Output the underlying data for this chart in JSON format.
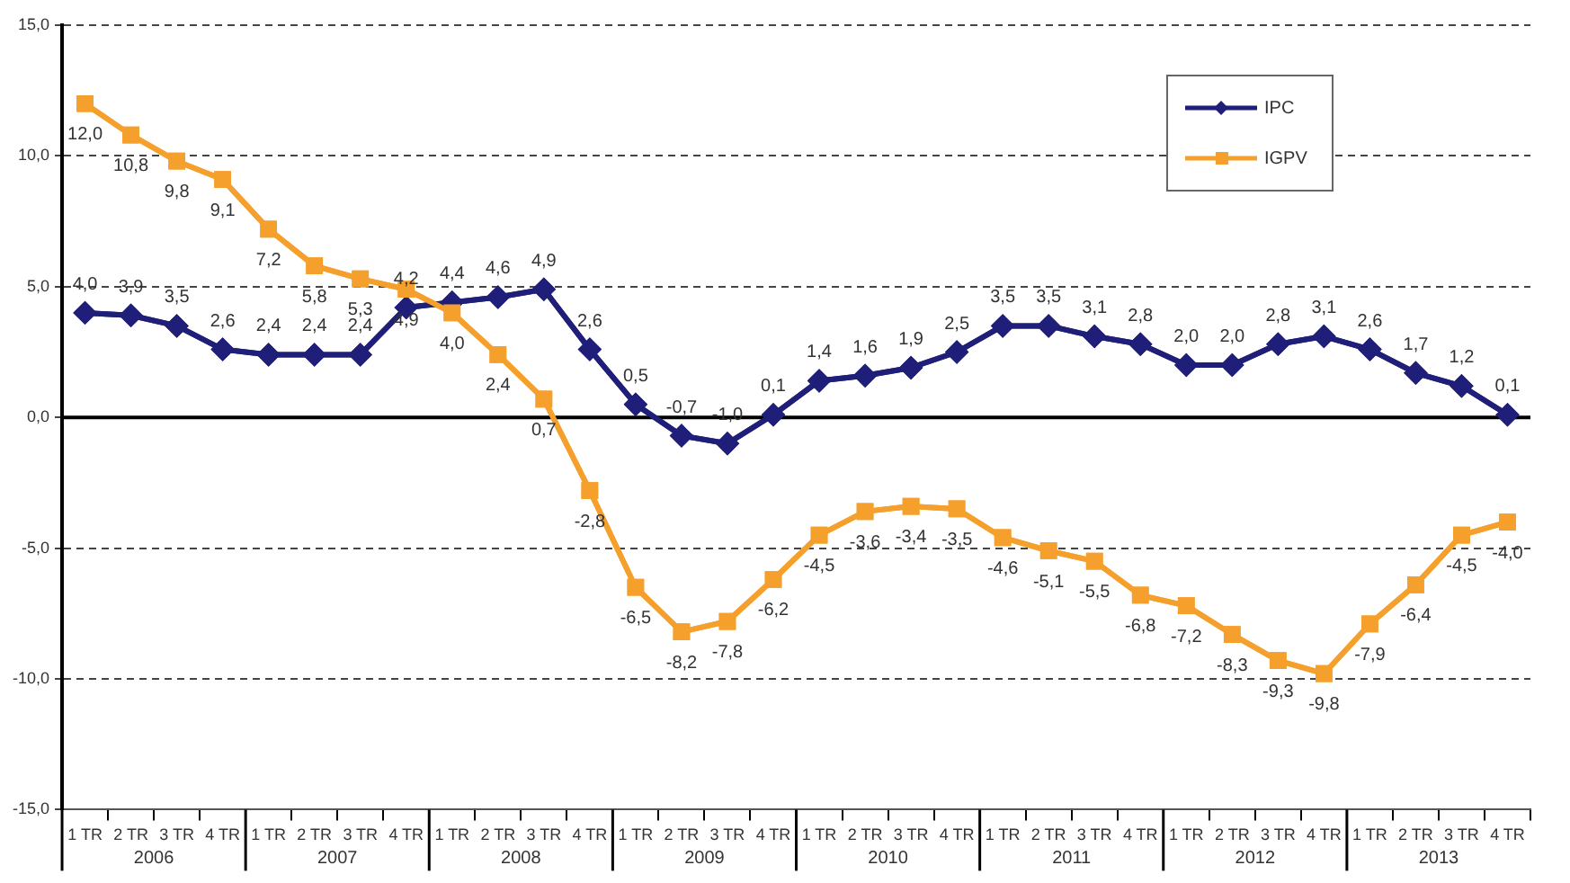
{
  "chart_data": {
    "type": "line",
    "categories": [
      "1 TR",
      "2 TR",
      "3 TR",
      "4 TR",
      "1 TR",
      "2 TR",
      "3 TR",
      "4 TR",
      "1 TR",
      "2 TR",
      "3 TR",
      "4 TR",
      "1 TR",
      "2 TR",
      "3 TR",
      "4 TR",
      "1 TR",
      "2 TR",
      "3 TR",
      "4 TR",
      "1 TR",
      "2 TR",
      "3 TR",
      "4 TR",
      "1 TR",
      "2 TR",
      "3 TR",
      "4 TR",
      "1 TR",
      "2 TR",
      "3 TR",
      "4 TR"
    ],
    "series": [
      {
        "name": "IPC",
        "color": "#1f1f7a",
        "marker": "diamond",
        "values": [
          4.0,
          3.9,
          3.5,
          2.6,
          2.4,
          2.4,
          2.4,
          4.2,
          4.4,
          4.6,
          4.9,
          2.6,
          0.5,
          -0.7,
          -1.0,
          0.1,
          1.4,
          1.6,
          1.9,
          2.5,
          3.5,
          3.5,
          3.1,
          2.8,
          2.0,
          2.0,
          2.8,
          3.1,
          2.6,
          1.7,
          1.2,
          0.1
        ],
        "value_labels": [
          "4,0",
          "3,9",
          "3,5",
          "2,6",
          "2,4",
          "2,4",
          "2,4",
          "4,2",
          "4,4",
          "4,6",
          "4,9",
          "2,6",
          "0,5",
          "-0,7",
          "-1,0",
          "0,1",
          "1,4",
          "1,6",
          "1,9",
          "2,5",
          "3,5",
          "3,5",
          "3,1",
          "2,8",
          "2,0",
          "2,0",
          "2,8",
          "3,1",
          "2,6",
          "1,7",
          "1,2",
          "0,1"
        ]
      },
      {
        "name": "IGPV",
        "color": "#f5a02c",
        "marker": "square",
        "values": [
          12.0,
          10.8,
          9.8,
          9.1,
          7.2,
          5.8,
          5.3,
          4.9,
          4.0,
          2.4,
          0.7,
          -2.8,
          -6.5,
          -8.2,
          -7.8,
          -6.2,
          -4.5,
          -3.6,
          -3.4,
          -3.5,
          -4.6,
          -5.1,
          -5.5,
          -6.8,
          -7.2,
          -8.3,
          -9.3,
          -9.8,
          -7.9,
          -6.4,
          -4.5,
          -4.0
        ],
        "value_labels": [
          "12,0",
          "10,8",
          "9,8",
          "9,1",
          "7,2",
          "5,8",
          "5,3",
          "4,9",
          "4,0",
          "2,4",
          "0,7",
          "-2,8",
          "-6,5",
          "-8,2",
          "-7,8",
          "-6,2",
          "-4,5",
          "-3,6",
          "-3,4",
          "-3,5",
          "-4,6",
          "-5,1",
          "-5,5",
          "-6,8",
          "-7,2",
          "-8,3",
          "-9,3",
          "-9,8",
          "-7,9",
          "-6,4",
          "-4,5",
          "-4,0"
        ]
      }
    ],
    "ylim": [
      -15,
      15
    ],
    "yticks": [
      {
        "value": -15,
        "label": "-15,0"
      },
      {
        "value": -10,
        "label": "-10,0"
      },
      {
        "value": -5,
        "label": "-5,0"
      },
      {
        "value": 0,
        "label": "0,0"
      },
      {
        "value": 5,
        "label": "5,0"
      },
      {
        "value": 10,
        "label": "10,0"
      },
      {
        "value": 15,
        "label": "15,0"
      }
    ],
    "grid": "y",
    "legend": "top right",
    "ref_lines": [
      {
        "axis": "y",
        "value": 0,
        "color": "#000000",
        "line_style": "solid"
      }
    ],
    "annotations": [
      "2006",
      "2007",
      "2008",
      "2009",
      "2010",
      "2011",
      "2012",
      "2013"
    ]
  }
}
